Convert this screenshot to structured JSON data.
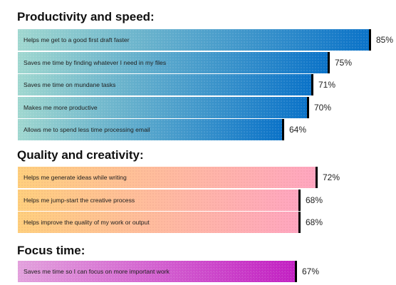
{
  "chart_data": {
    "type": "bar",
    "orientation": "horizontal",
    "groups": [
      {
        "title": "Productivity and speed:",
        "color_start": "#9fd7cf",
        "color_end": "#0a72c8",
        "items": [
          {
            "label": "Helps me get to a good first draft faster",
            "value": 85,
            "value_label": "85%"
          },
          {
            "label": "Saves me time by finding whatever I need in my files",
            "value": 75,
            "value_label": "75%"
          },
          {
            "label": "Saves me time on mundane tasks",
            "value": 71,
            "value_label": "71%"
          },
          {
            "label": "Makes me more productive",
            "value": 70,
            "value_label": "70%"
          },
          {
            "label": "Allows me to spend less time processing email",
            "value": 64,
            "value_label": "64%"
          }
        ]
      },
      {
        "title": "Quality and creativity:",
        "color_start": "#ffd07e",
        "color_end": "#ffa6c0",
        "items": [
          {
            "label": "Helps me generate ideas while writing",
            "value": 72,
            "value_label": "72%"
          },
          {
            "label": "Helps me jump-start the creative process",
            "value": 68,
            "value_label": "68%"
          },
          {
            "label": "Helps improve the quality of my work or output",
            "value": 68,
            "value_label": "68%"
          }
        ]
      },
      {
        "title": "Focus time:",
        "color_start": "#e2a0dc",
        "color_end": "#c21fc2",
        "items": [
          {
            "label": "Saves me time so I can focus on more important work",
            "value": 67,
            "value_label": "67%"
          }
        ]
      }
    ],
    "xlim": [
      0,
      100
    ],
    "grid": false,
    "legend": "none"
  }
}
